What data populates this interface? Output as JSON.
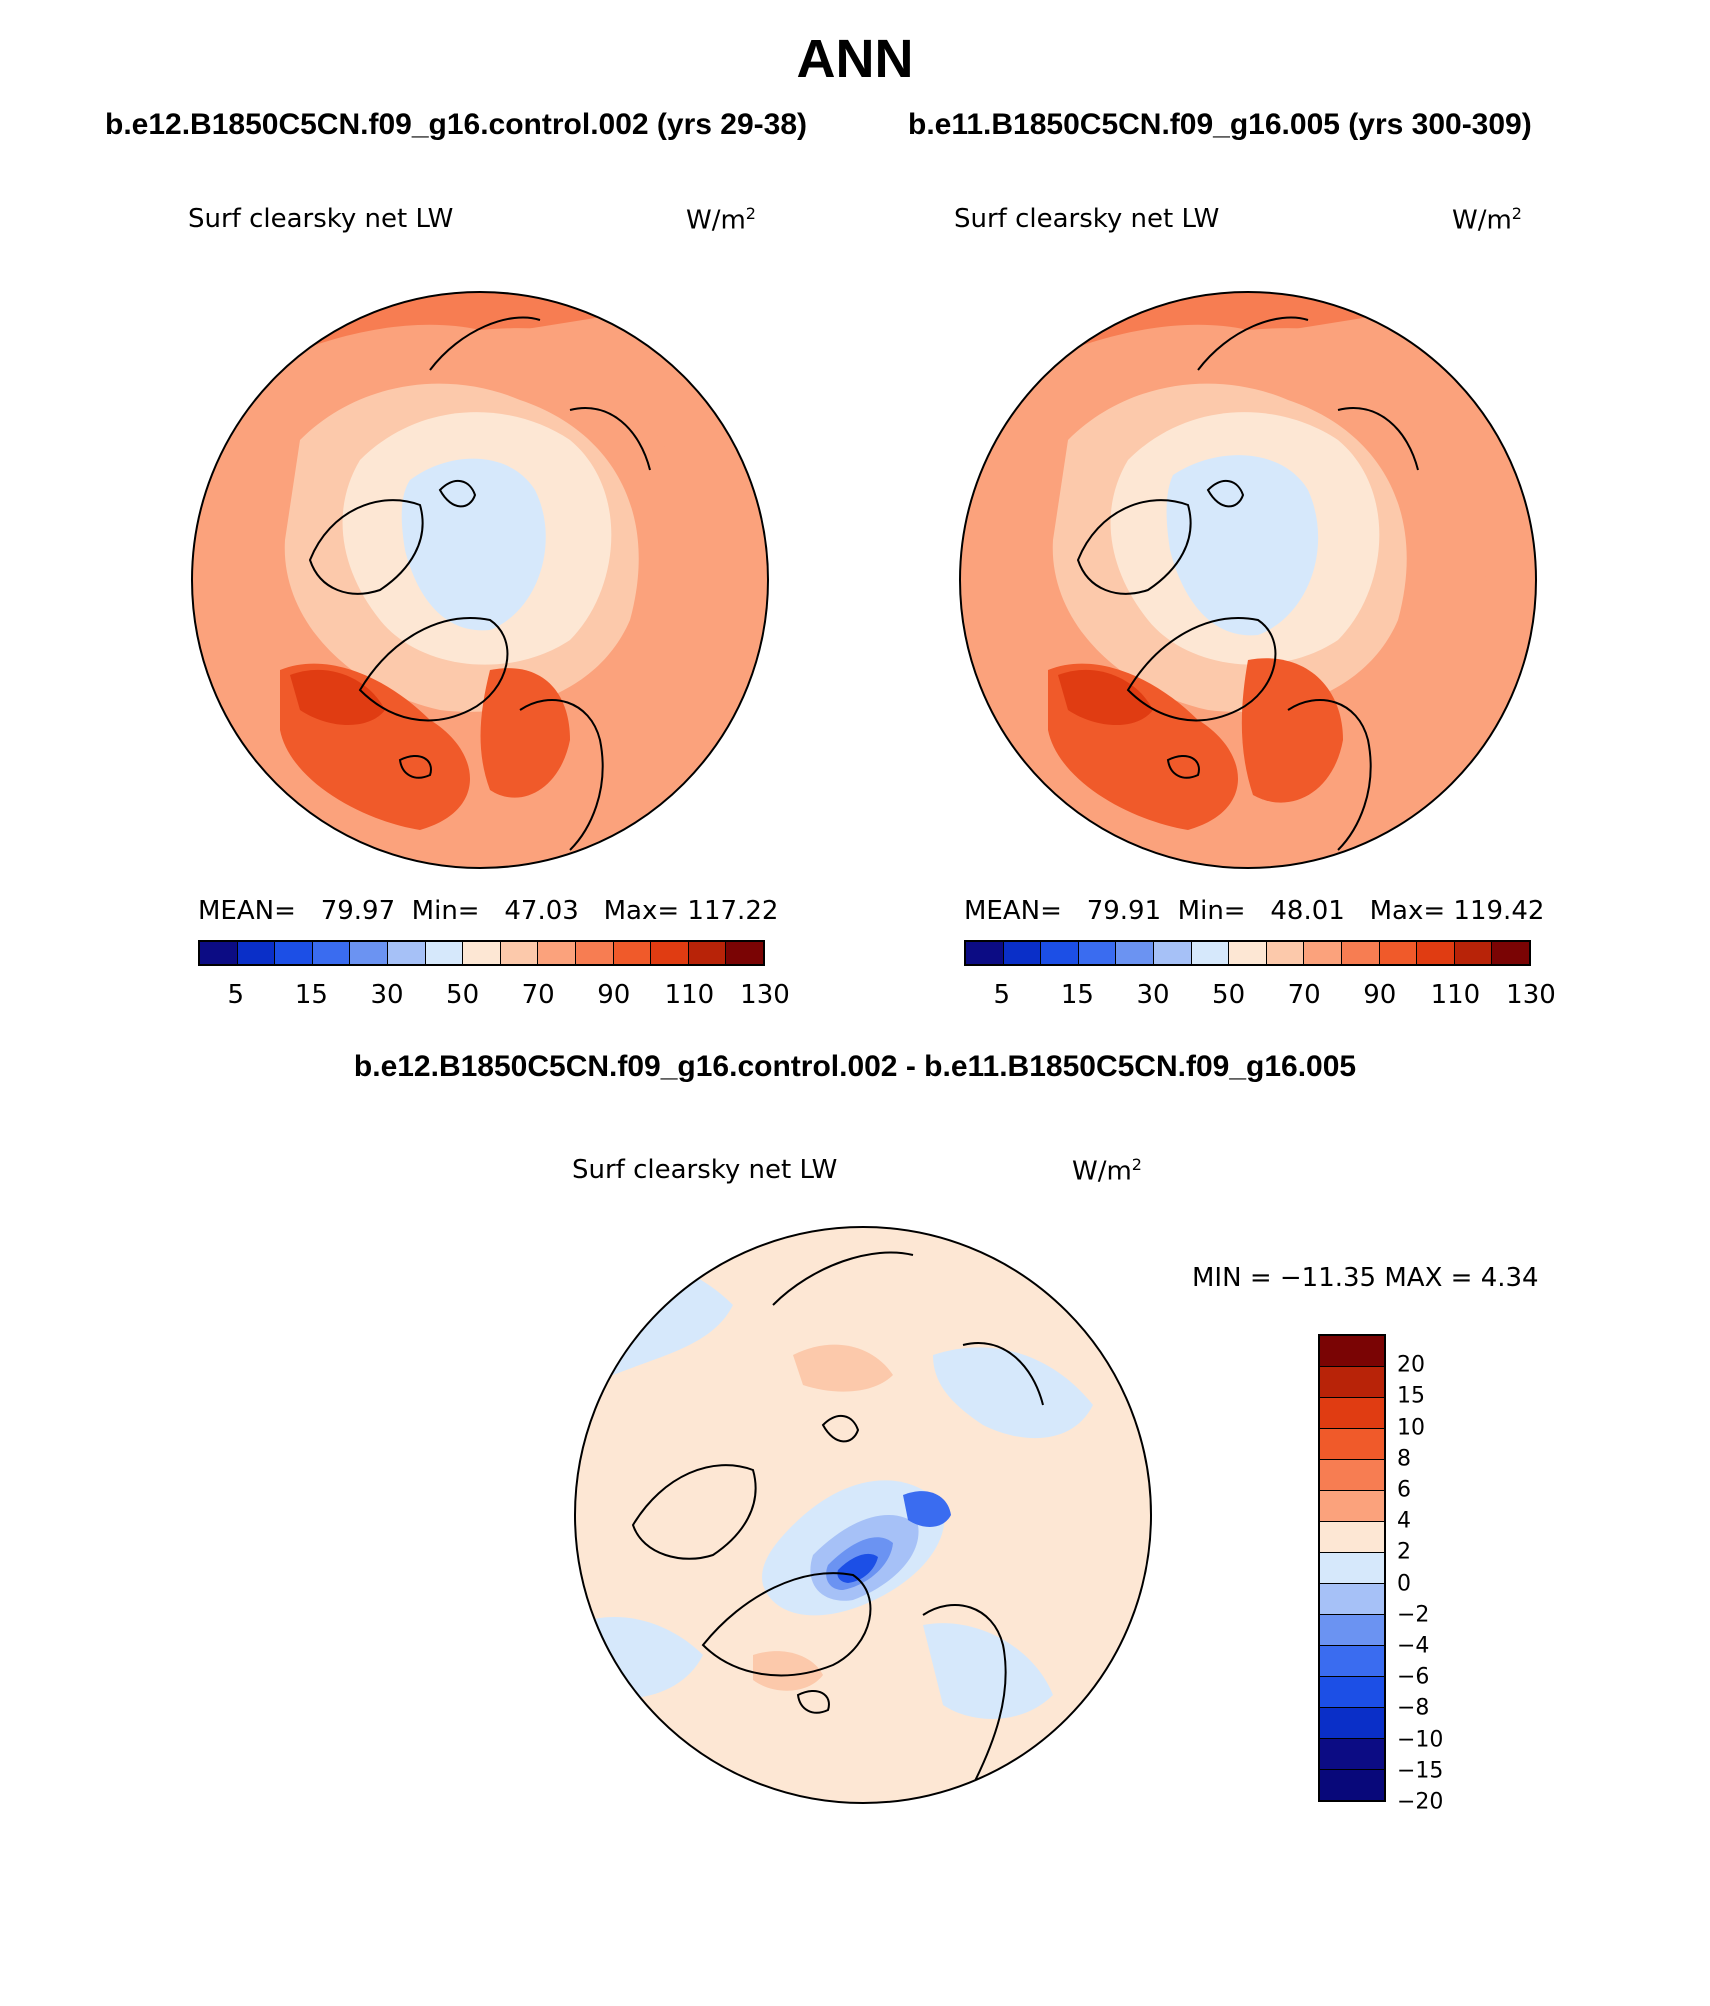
{
  "title": "ANN",
  "panels": [
    {
      "case": "b.e12.B1850C5CN.f09_g16.control.002 (yrs 29-38)",
      "variable": "Surf clearsky net LW",
      "units_base": "W/m",
      "units_sup": "2",
      "stats": {
        "mean_label": "MEAN=",
        "mean": "79.97",
        "min_label": "Min=",
        "min": "47.03",
        "max_label": "Max=",
        "max": "117.22"
      }
    },
    {
      "case": "b.e11.B1850C5CN.f09_g16.005 (yrs 300-309)",
      "variable": "Surf clearsky net LW",
      "units_base": "W/m",
      "units_sup": "2",
      "stats": {
        "mean_label": "MEAN=",
        "mean": "79.91",
        "min_label": "Min=",
        "min": "48.01",
        "max_label": "Max=",
        "max": "119.42"
      }
    }
  ],
  "difference": {
    "title": "b.e12.B1850C5CN.f09_g16.control.002 - b.e11.B1850C5CN.f09_g16.005",
    "variable": "Surf clearsky net LW",
    "units_base": "W/m",
    "units_sup": "2",
    "minmax": "MIN = −11.35 MAX =    4.34"
  },
  "colorbars": {
    "abs_colors": [
      "#0c0c84",
      "#0a2fc8",
      "#1c4fe6",
      "#3a6cf0",
      "#6b93f2",
      "#a6c1f7",
      "#d6e8fb",
      "#fde7d4",
      "#fcc9ab",
      "#fba27c",
      "#f77d52",
      "#f05a2a",
      "#e03c12",
      "#b82308",
      "#7a0404"
    ],
    "abs_ticks": [
      "5",
      "15",
      "30",
      "50",
      "70",
      "90",
      "110",
      "130"
    ],
    "diff_colors": [
      "#7a0404",
      "#b82308",
      "#e03c12",
      "#f05a2a",
      "#f77d52",
      "#fba27c",
      "#fde7d4",
      "#d6e8fb",
      "#a6c1f7",
      "#6b93f2",
      "#3a6cf0",
      "#1c4fe6",
      "#0a2fc8",
      "#0c0c84",
      "#08087a"
    ],
    "diff_ticks": [
      "20",
      "15",
      "10",
      "8",
      "6",
      "4",
      "2",
      "0",
      "−2",
      "−4",
      "−6",
      "−8",
      "−10",
      "−15",
      "−20"
    ]
  }
}
